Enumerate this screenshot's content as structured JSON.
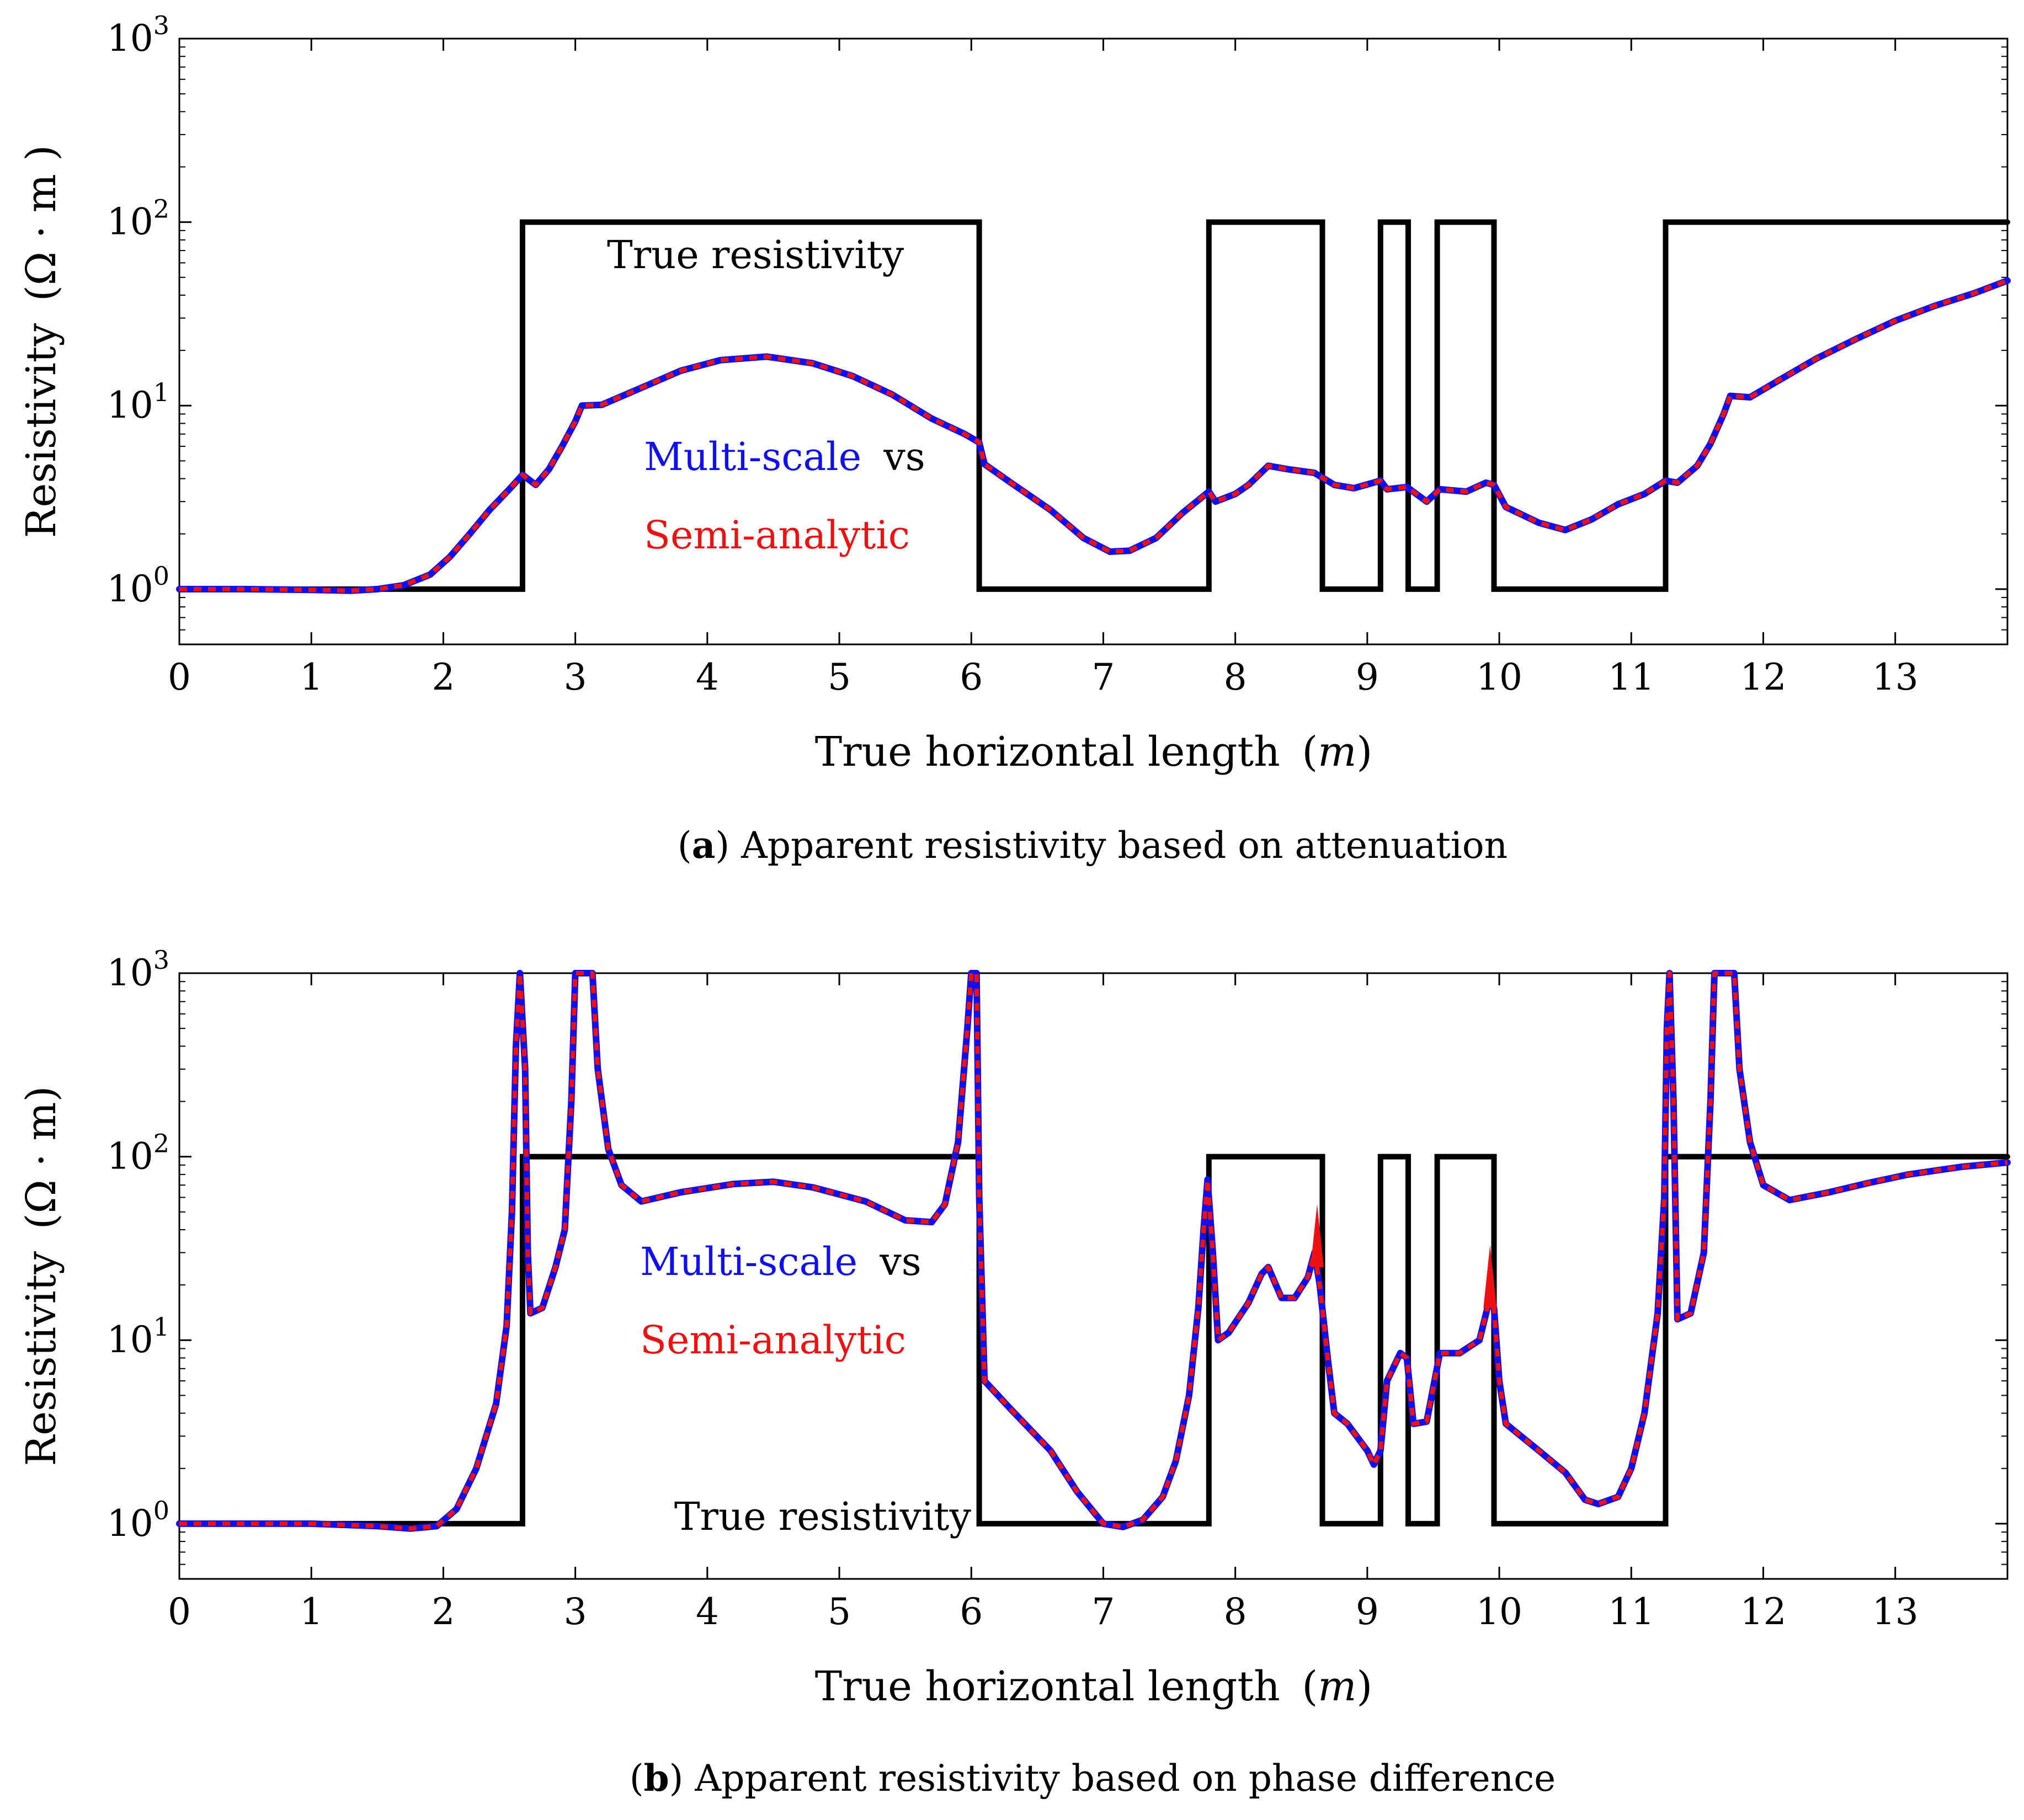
{
  "chart_data": [
    {
      "type": "line",
      "panel": "a",
      "caption_label": "a",
      "caption_text": ") Apparent resistivity based on attenuation",
      "xlabel": "True horizontal length",
      "xlabel_unit": "m",
      "ylabel": "Resistivity",
      "ylabel_unit": "Ω · m )",
      "xlim": [
        0,
        13.85
      ],
      "ylim": [
        0.5,
        1000
      ],
      "yscale": "log",
      "x_ticks": [
        0,
        1,
        2,
        3,
        4,
        5,
        6,
        7,
        8,
        9,
        10,
        11,
        12,
        13
      ],
      "y_ticks": [
        1,
        10,
        100,
        1000
      ],
      "y_tick_exponents": [
        "0",
        "1",
        "2",
        "3"
      ],
      "y_tick_base": "10",
      "annotations": {
        "true_label": "True resistivity",
        "legend_blue": "Multi-scale",
        "legend_vs": "vs",
        "legend_red": "Semi-analytic"
      },
      "series": [
        {
          "name": "True resistivity",
          "color": "#000000",
          "style": "step",
          "points": [
            [
              0,
              1
            ],
            [
              2.6,
              1
            ],
            [
              2.6,
              100
            ],
            [
              6.06,
              100
            ],
            [
              6.06,
              1
            ],
            [
              7.8,
              1
            ],
            [
              7.8,
              100
            ],
            [
              8.66,
              100
            ],
            [
              8.66,
              1
            ],
            [
              9.1,
              1
            ],
            [
              9.1,
              100
            ],
            [
              9.31,
              100
            ],
            [
              9.31,
              1
            ],
            [
              9.53,
              1
            ],
            [
              9.53,
              100
            ],
            [
              9.96,
              100
            ],
            [
              9.96,
              1
            ],
            [
              11.26,
              1
            ],
            [
              11.26,
              100
            ],
            [
              13.85,
              100
            ]
          ]
        },
        {
          "name": "Multi-scale",
          "color": "#1010ee",
          "style": "solid",
          "points": [
            [
              0,
              1
            ],
            [
              0.5,
              1
            ],
            [
              1,
              0.99
            ],
            [
              1.3,
              0.98
            ],
            [
              1.5,
              1.0
            ],
            [
              1.7,
              1.05
            ],
            [
              1.9,
              1.2
            ],
            [
              2.05,
              1.5
            ],
            [
              2.2,
              2.0
            ],
            [
              2.35,
              2.7
            ],
            [
              2.5,
              3.5
            ],
            [
              2.6,
              4.2
            ],
            [
              2.7,
              3.7
            ],
            [
              2.8,
              4.5
            ],
            [
              2.9,
              6.0
            ],
            [
              3.0,
              8.2
            ],
            [
              3.05,
              10
            ],
            [
              3.2,
              10.1
            ],
            [
              3.5,
              12.5
            ],
            [
              3.8,
              15.5
            ],
            [
              4.1,
              17.7
            ],
            [
              4.45,
              18.5
            ],
            [
              4.8,
              17
            ],
            [
              5.1,
              14.5
            ],
            [
              5.4,
              11.5
            ],
            [
              5.7,
              8.5
            ],
            [
              5.95,
              7.0
            ],
            [
              6.06,
              6.3
            ],
            [
              6.1,
              4.8
            ],
            [
              6.3,
              3.8
            ],
            [
              6.6,
              2.7
            ],
            [
              6.85,
              1.9
            ],
            [
              7.05,
              1.6
            ],
            [
              7.2,
              1.62
            ],
            [
              7.4,
              1.9
            ],
            [
              7.6,
              2.6
            ],
            [
              7.8,
              3.4
            ],
            [
              7.85,
              3.0
            ],
            [
              8.0,
              3.3
            ],
            [
              8.1,
              3.7
            ],
            [
              8.25,
              4.7
            ],
            [
              8.4,
              4.5
            ],
            [
              8.6,
              4.3
            ],
            [
              8.75,
              3.7
            ],
            [
              8.9,
              3.55
            ],
            [
              9.1,
              3.9
            ],
            [
              9.15,
              3.5
            ],
            [
              9.3,
              3.6
            ],
            [
              9.45,
              3.0
            ],
            [
              9.55,
              3.5
            ],
            [
              9.75,
              3.4
            ],
            [
              9.9,
              3.8
            ],
            [
              9.96,
              3.7
            ],
            [
              10.05,
              2.8
            ],
            [
              10.3,
              2.3
            ],
            [
              10.5,
              2.1
            ],
            [
              10.7,
              2.4
            ],
            [
              10.9,
              2.9
            ],
            [
              11.1,
              3.3
            ],
            [
              11.26,
              3.9
            ],
            [
              11.35,
              3.8
            ],
            [
              11.5,
              4.7
            ],
            [
              11.6,
              6.2
            ],
            [
              11.7,
              9.0
            ],
            [
              11.75,
              11.3
            ],
            [
              11.9,
              11.1
            ],
            [
              12.1,
              13.5
            ],
            [
              12.4,
              18
            ],
            [
              12.7,
              23
            ],
            [
              13.0,
              29
            ],
            [
              13.3,
              35
            ],
            [
              13.6,
              41
            ],
            [
              13.85,
              48
            ]
          ]
        },
        {
          "name": "Semi-analytic",
          "color": "#ee1111",
          "style": "dashed",
          "same_as": "Multi-scale"
        }
      ]
    },
    {
      "type": "line",
      "panel": "b",
      "caption_label": "b",
      "caption_text": ") Apparent resistivity based on phase difference",
      "xlabel": "True horizontal length",
      "xlabel_unit": "m",
      "ylabel": "Resistivity",
      "ylabel_unit": "Ω · m",
      "xlim": [
        0,
        13.85
      ],
      "ylim": [
        0.5,
        1000
      ],
      "yscale": "log",
      "x_ticks": [
        0,
        1,
        2,
        3,
        4,
        5,
        6,
        7,
        8,
        9,
        10,
        11,
        12,
        13
      ],
      "y_ticks": [
        1,
        10,
        100,
        1000
      ],
      "y_tick_exponents": [
        "0",
        "1",
        "2",
        "3"
      ],
      "y_tick_base": "10",
      "annotations": {
        "true_label": "True resistivity",
        "legend_blue": "Multi-scale",
        "legend_vs": "vs",
        "legend_red": "Semi-analytic"
      },
      "series": [
        {
          "name": "True resistivity",
          "color": "#000000",
          "style": "step",
          "points": [
            [
              0,
              1
            ],
            [
              2.6,
              1
            ],
            [
              2.6,
              100
            ],
            [
              6.06,
              100
            ],
            [
              6.06,
              1
            ],
            [
              7.8,
              1
            ],
            [
              7.8,
              100
            ],
            [
              8.66,
              100
            ],
            [
              8.66,
              1
            ],
            [
              9.1,
              1
            ],
            [
              9.1,
              100
            ],
            [
              9.31,
              100
            ],
            [
              9.31,
              1
            ],
            [
              9.53,
              1
            ],
            [
              9.53,
              100
            ],
            [
              9.96,
              100
            ],
            [
              9.96,
              1
            ],
            [
              11.26,
              1
            ],
            [
              11.26,
              100
            ],
            [
              13.85,
              100
            ]
          ]
        },
        {
          "name": "Multi-scale",
          "color": "#1010ee",
          "style": "solid",
          "points": [
            [
              0,
              1
            ],
            [
              0.5,
              1
            ],
            [
              1,
              1
            ],
            [
              1.5,
              0.97
            ],
            [
              1.75,
              0.94
            ],
            [
              1.95,
              0.97
            ],
            [
              2.1,
              1.2
            ],
            [
              2.25,
              2.0
            ],
            [
              2.4,
              4.5
            ],
            [
              2.48,
              12
            ],
            [
              2.52,
              50
            ],
            [
              2.55,
              400
            ],
            [
              2.58,
              1000
            ],
            [
              2.62,
              300
            ],
            [
              2.64,
              30
            ],
            [
              2.66,
              14
            ],
            [
              2.75,
              15
            ],
            [
              2.85,
              25
            ],
            [
              2.92,
              40
            ],
            [
              2.97,
              200
            ],
            [
              3.0,
              1000
            ],
            [
              3.13,
              1000
            ],
            [
              3.17,
              300
            ],
            [
              3.25,
              110
            ],
            [
              3.35,
              70
            ],
            [
              3.5,
              57
            ],
            [
              3.8,
              64
            ],
            [
              4.2,
              71
            ],
            [
              4.5,
              73
            ],
            [
              4.8,
              68
            ],
            [
              5.2,
              57
            ],
            [
              5.5,
              45
            ],
            [
              5.7,
              44
            ],
            [
              5.8,
              55
            ],
            [
              5.9,
              120
            ],
            [
              5.97,
              500
            ],
            [
              6.0,
              1000
            ],
            [
              6.04,
              1000
            ],
            [
              6.06,
              60
            ],
            [
              6.1,
              6.0
            ],
            [
              6.3,
              4.2
            ],
            [
              6.6,
              2.5
            ],
            [
              6.8,
              1.5
            ],
            [
              7.0,
              1.0
            ],
            [
              7.15,
              0.96
            ],
            [
              7.3,
              1.05
            ],
            [
              7.45,
              1.4
            ],
            [
              7.55,
              2.2
            ],
            [
              7.65,
              5
            ],
            [
              7.72,
              15
            ],
            [
              7.76,
              40
            ],
            [
              7.79,
              75
            ],
            [
              7.83,
              30
            ],
            [
              7.87,
              10
            ],
            [
              7.95,
              11
            ],
            [
              8.1,
              16
            ],
            [
              8.2,
              23
            ],
            [
              8.25,
              25
            ],
            [
              8.35,
              17
            ],
            [
              8.45,
              17
            ],
            [
              8.55,
              22
            ],
            [
              8.6,
              30
            ],
            [
              8.64,
              20
            ],
            [
              8.7,
              8
            ],
            [
              8.75,
              4
            ],
            [
              8.85,
              3.5
            ],
            [
              9.0,
              2.5
            ],
            [
              9.05,
              2.1
            ],
            [
              9.1,
              2.5
            ],
            [
              9.15,
              6
            ],
            [
              9.25,
              8.5
            ],
            [
              9.3,
              8.0
            ],
            [
              9.35,
              3.5
            ],
            [
              9.45,
              3.6
            ],
            [
              9.55,
              8.5
            ],
            [
              9.7,
              8.5
            ],
            [
              9.85,
              10
            ],
            [
              9.92,
              16
            ],
            [
              9.96,
              15
            ],
            [
              10.0,
              6
            ],
            [
              10.05,
              3.5
            ],
            [
              10.3,
              2.5
            ],
            [
              10.5,
              1.9
            ],
            [
              10.65,
              1.35
            ],
            [
              10.75,
              1.28
            ],
            [
              10.9,
              1.4
            ],
            [
              11.0,
              2.0
            ],
            [
              11.1,
              4
            ],
            [
              11.2,
              14
            ],
            [
              11.25,
              60
            ],
            [
              11.27,
              500
            ],
            [
              11.29,
              1000
            ],
            [
              11.32,
              200
            ],
            [
              11.35,
              13
            ],
            [
              11.45,
              14
            ],
            [
              11.55,
              30
            ],
            [
              11.6,
              200
            ],
            [
              11.63,
              1000
            ],
            [
              11.78,
              1000
            ],
            [
              11.82,
              300
            ],
            [
              11.9,
              120
            ],
            [
              12.0,
              70
            ],
            [
              12.2,
              58
            ],
            [
              12.5,
              64
            ],
            [
              12.8,
              72
            ],
            [
              13.1,
              80
            ],
            [
              13.5,
              88
            ],
            [
              13.85,
              93
            ]
          ]
        },
        {
          "name": "Semi-analytic",
          "color": "#ee1111",
          "style": "dashed",
          "same_as": "Multi-scale",
          "spikes": [
            [
              8.62,
              55
            ],
            [
              9.93,
              33
            ]
          ]
        }
      ]
    }
  ]
}
